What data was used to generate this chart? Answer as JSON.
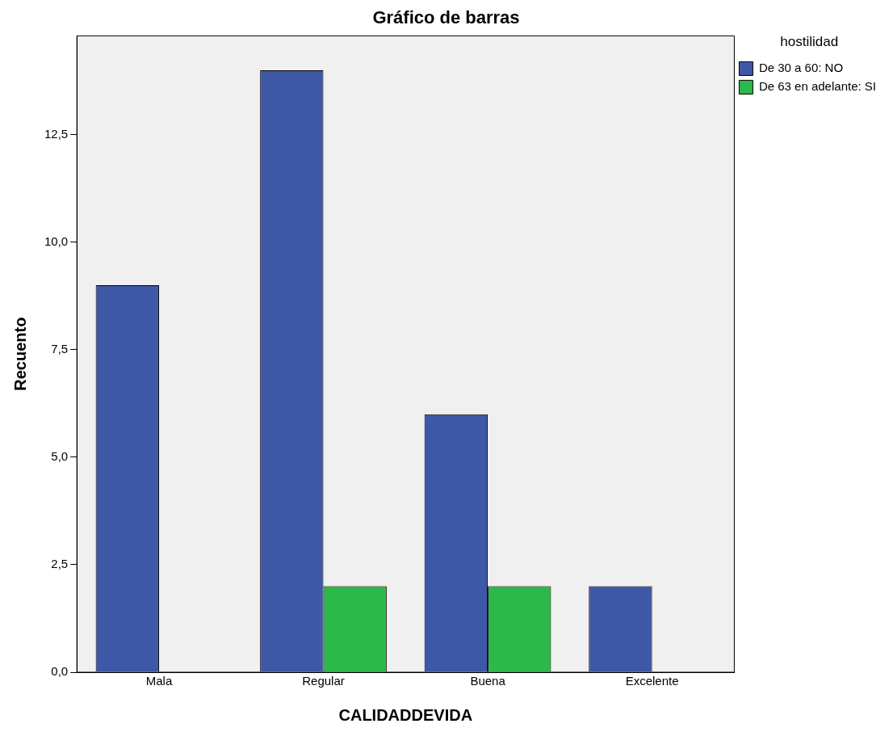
{
  "chart_data": {
    "type": "bar",
    "title": "Gráfico de barras",
    "xlabel": "CALIDADDEVIDA",
    "ylabel": "Recuento",
    "legend_title": "hostilidad",
    "categories": [
      "Mala",
      "Regular",
      "Buena",
      "Excelente"
    ],
    "series": [
      {
        "name": "De 30 a 60: NO",
        "color": "#3e58a8",
        "values": [
          9,
          14,
          6,
          2
        ]
      },
      {
        "name": "De 63 en adelante: SI",
        "color": "#2db84a",
        "values": [
          null,
          2,
          2,
          null
        ]
      }
    ],
    "ylim": [
      0,
      14.8
    ],
    "yticks": [
      {
        "value": 0,
        "label": "0,0"
      },
      {
        "value": 2.5,
        "label": "2,5"
      },
      {
        "value": 5,
        "label": "5,0"
      },
      {
        "value": 7.5,
        "label": "7,5"
      },
      {
        "value": 10,
        "label": "10,0"
      },
      {
        "value": 12.5,
        "label": "12,5"
      }
    ],
    "grid": false,
    "legend": "top right"
  }
}
